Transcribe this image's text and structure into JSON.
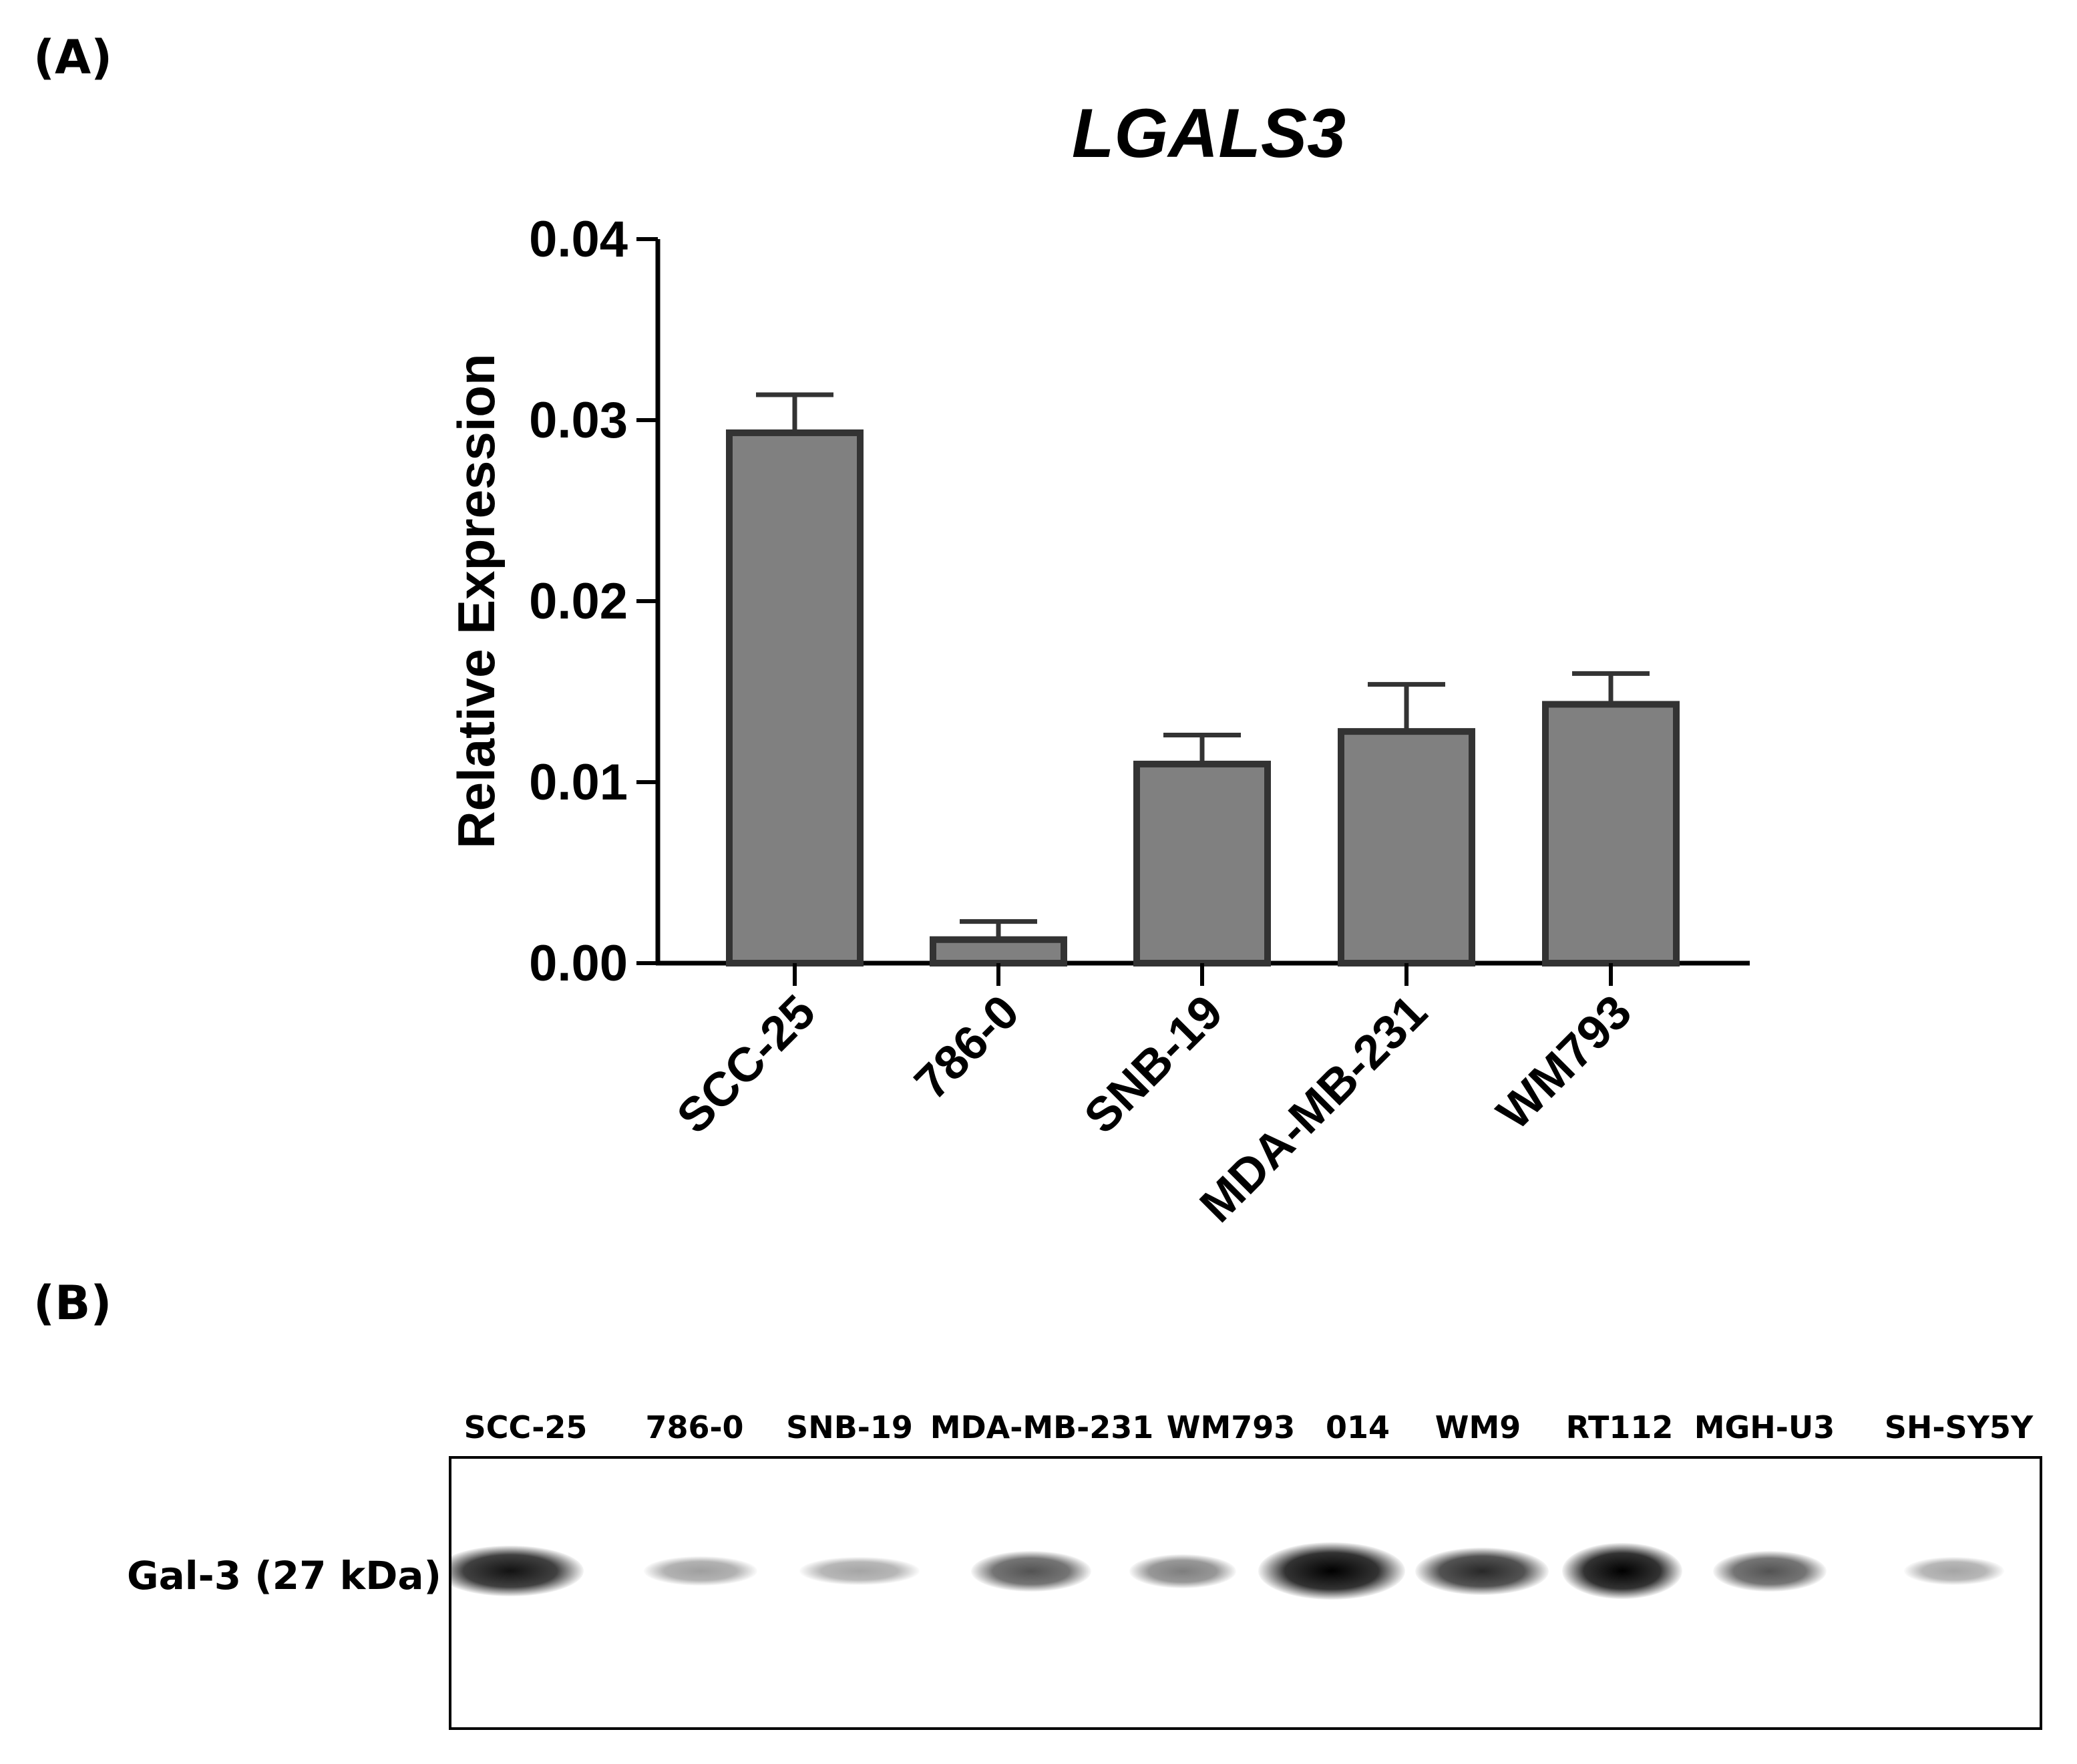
{
  "panel_a": {
    "label": "(A)"
  },
  "panel_b": {
    "label": "(B)"
  },
  "chart_data": {
    "type": "bar",
    "title": "LGALS3",
    "ylabel": "Relative Expression",
    "xlabel": "",
    "categories": [
      "SCC-25",
      "786-0",
      "SNB-19",
      "MDA-MB-231",
      "WM793"
    ],
    "values": [
      0.0293,
      0.0013,
      0.011,
      0.0128,
      0.0143
    ],
    "errors": [
      0.0021,
      0.001,
      0.0016,
      0.0026,
      0.0017
    ],
    "ylim": [
      0,
      0.04
    ],
    "yticks": [
      "0.00",
      "0.01",
      "0.02",
      "0.03",
      "0.04"
    ],
    "bar_color": "#808080",
    "edge_color": "#333333",
    "grid": false
  },
  "blot": {
    "row_label": "Gal-3 (27 kDa)",
    "lanes": [
      {
        "name": "SCC-25",
        "intensity": 0.8
      },
      {
        "name": "786-0",
        "intensity": 0.15
      },
      {
        "name": "SNB-19",
        "intensity": 0.12
      },
      {
        "name": "MDA-MB-231",
        "intensity": 0.5
      },
      {
        "name": "WM793",
        "intensity": 0.3
      },
      {
        "name": "014",
        "intensity": 1.0
      },
      {
        "name": "WM9",
        "intensity": 0.7
      },
      {
        "name": "RT112",
        "intensity": 0.95
      },
      {
        "name": "MGH-U3",
        "intensity": 0.5
      },
      {
        "name": "SH-SY5Y",
        "intensity": 0.12
      }
    ]
  }
}
